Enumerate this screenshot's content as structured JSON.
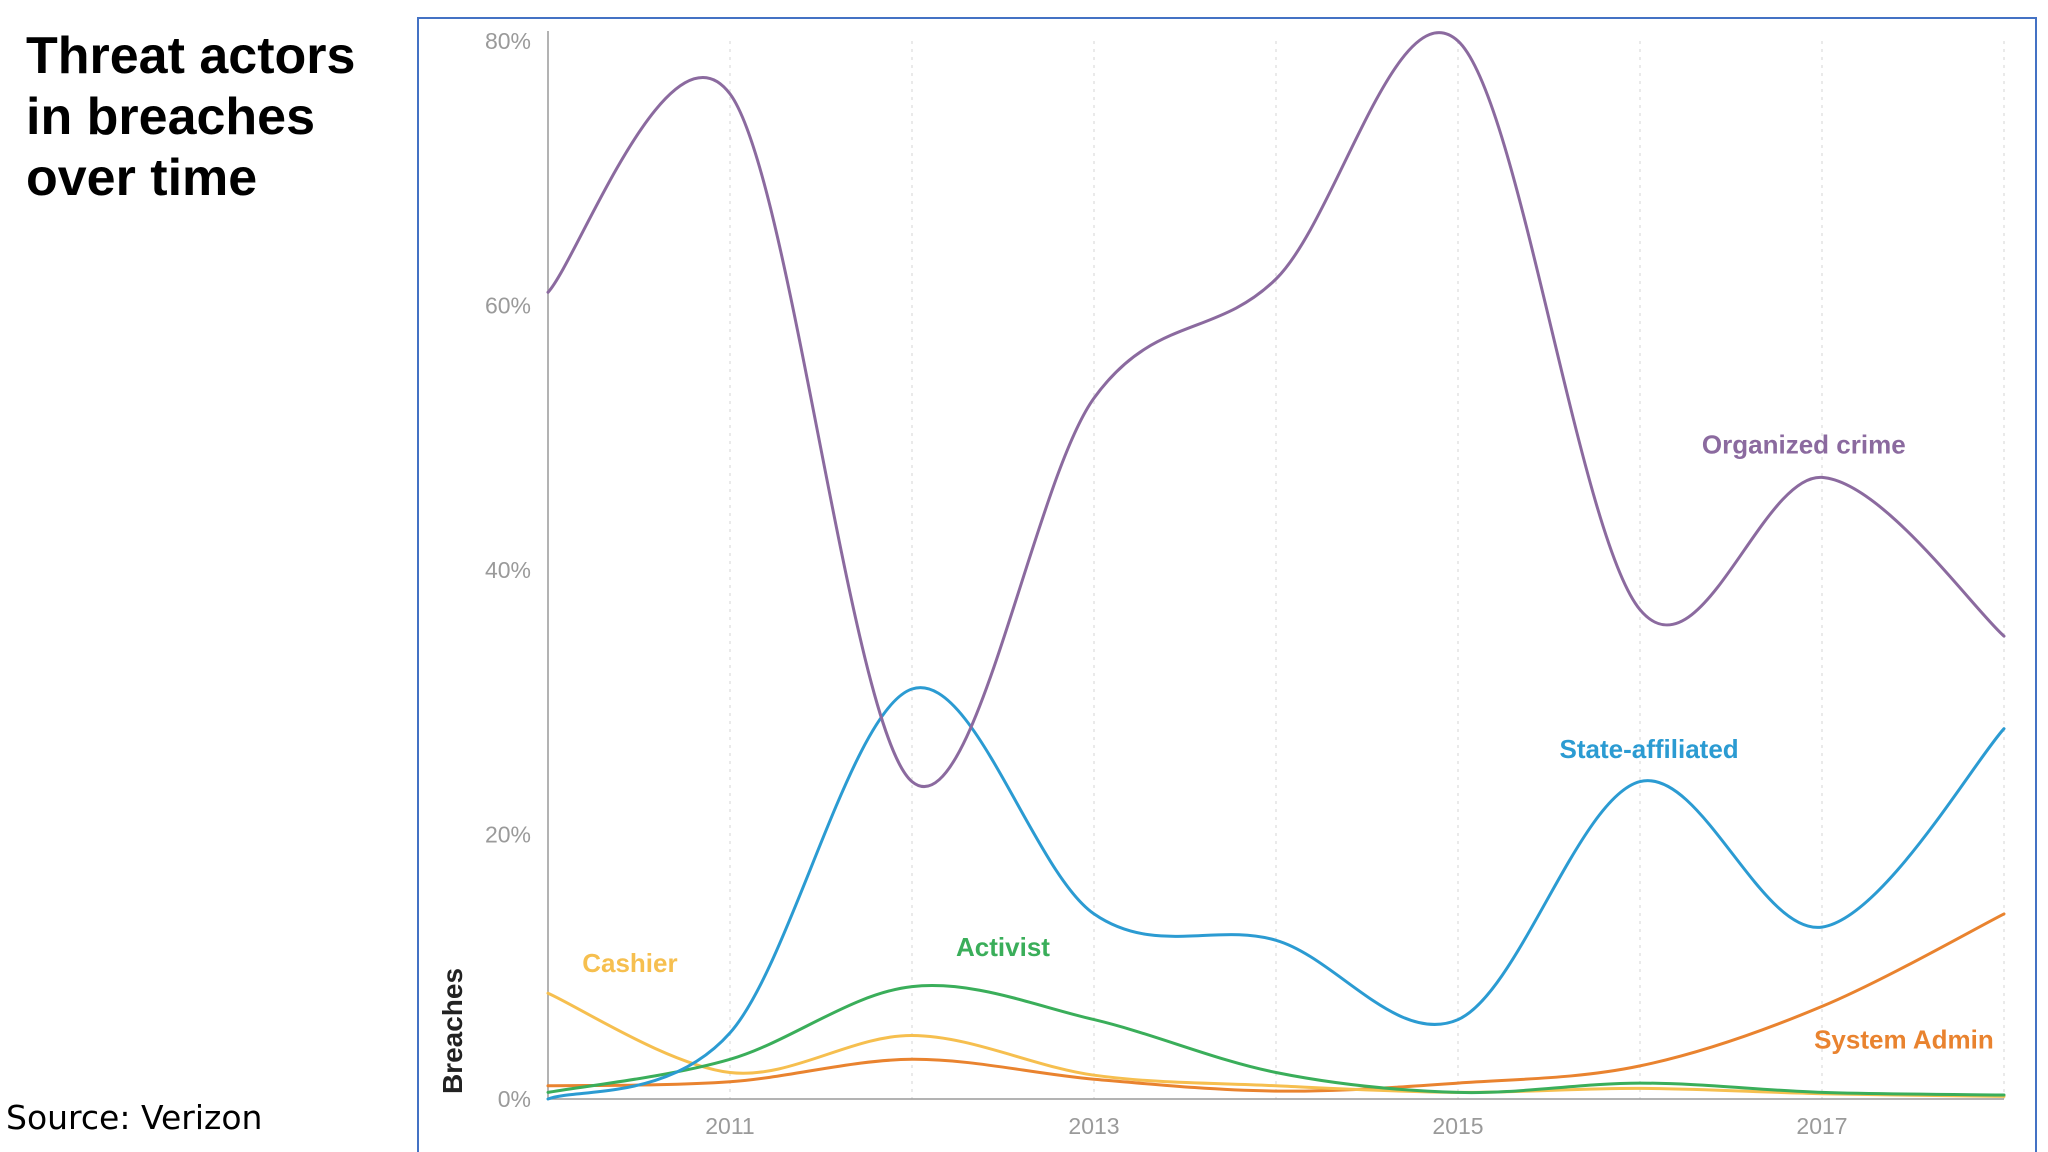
{
  "slide": {
    "title": "Threat actors in breaches over time",
    "source": "Source: Verizon"
  },
  "chart_data": {
    "type": "line",
    "title": "",
    "xlabel": "",
    "ylabel": "Breaches",
    "xlim": [
      2010,
      2018
    ],
    "ylim": [
      0,
      80
    ],
    "x_ticks": [
      2011,
      2013,
      2015,
      2017
    ],
    "x_tick_labels": [
      "2011",
      "2013",
      "2015",
      "2017"
    ],
    "y_ticks": [
      0,
      20,
      40,
      60,
      80
    ],
    "y_tick_labels": [
      "0%",
      "20%",
      "40%",
      "60%",
      "80%"
    ],
    "grid": "vertical dotted",
    "legend": "inline labels",
    "x": [
      2010,
      2011,
      2012,
      2013,
      2014,
      2015,
      2016,
      2017,
      2018
    ],
    "series": [
      {
        "name": "Organized crime",
        "color": "#8b6a9f",
        "values": [
          61,
          76,
          24,
          53,
          62,
          80,
          37,
          47,
          35
        ]
      },
      {
        "name": "State-affiliated",
        "color": "#2b9bd2",
        "values": [
          0,
          5,
          31,
          14,
          12,
          6,
          24,
          13,
          28
        ]
      },
      {
        "name": "Activist",
        "color": "#3aae5a",
        "values": [
          0.5,
          3,
          8.5,
          6,
          2,
          0.5,
          1.2,
          0.5,
          0.3
        ]
      },
      {
        "name": "Cashier",
        "color": "#f6bf4f",
        "values": [
          8,
          2,
          4.8,
          1.8,
          1,
          0.5,
          0.8,
          0.4,
          0.2
        ]
      },
      {
        "name": "System Admin",
        "color": "#e9832f",
        "values": [
          1,
          1.3,
          3,
          1.5,
          0.6,
          1.2,
          2.5,
          7,
          14
        ]
      }
    ]
  }
}
